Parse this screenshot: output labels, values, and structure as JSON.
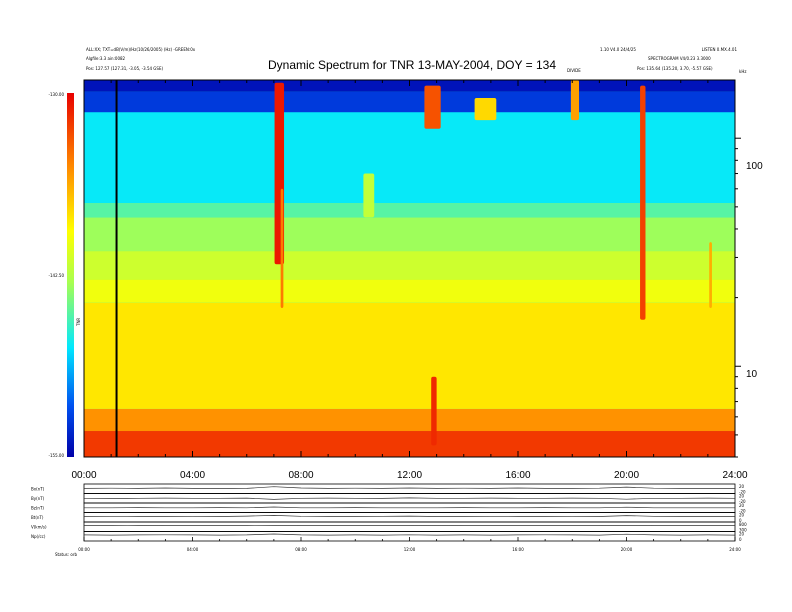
{
  "header": {
    "title": "Dynamic Spectrum for TNR 13-MAY-2004, DOY = 134",
    "left_line1": "ALL:XX; TXT=dB(V/m)/Hz(10/26/2005) (Hz) -GREEN:0x",
    "left_line2": "Algfile:3.3 ain:0082",
    "left_line3": "Pos:  127.57 (127.31, -3.05, -3.54 GSE)",
    "right_line1": "1.10 V4.0 24/4/25",
    "right_line2": "SPECTROGRAM  V4/0.23 3.3000",
    "right_line3": "Pos:  135.64 (135.20, 3.70, -5.57 GSE)",
    "far_right_top": "LISTEN 0.MX.4.01",
    "top_mark_label": "DIVIDE",
    "top_right_axis_label": "kHz"
  },
  "chart_data": [
    {
      "type": "heatmap",
      "title": "Dynamic Spectrum for TNR 13-MAY-2004, DOY = 134",
      "x_ticks": [
        "00:00",
        "04:00",
        "08:00",
        "12:00",
        "16:00",
        "20:00",
        "24:00"
      ],
      "x_range_hours": [
        0,
        24
      ],
      "y_right_ticks": [
        "100",
        "10"
      ],
      "y_right_scale": "log",
      "y_right_range_khz": [
        4,
        180
      ],
      "colorbar_ticks": [
        "-130.00",
        "-142.50",
        "-155.00"
      ],
      "colorbar_range": [
        -155,
        -130
      ],
      "colorbar_label": "TNR",
      "colormap": [
        "#0000a8",
        "#0050f0",
        "#00e8ff",
        "#a8ff50",
        "#ffff00",
        "#ff8800",
        "#e80000"
      ],
      "vertical_marker_hours": 1.2,
      "bands": [
        {
          "from_khz": 4,
          "to_khz": 5.2,
          "level": 0.93
        },
        {
          "from_khz": 5.2,
          "to_khz": 6.5,
          "level": 0.82
        },
        {
          "from_khz": 6.5,
          "to_khz": 19,
          "level": 0.7
        },
        {
          "from_khz": 19,
          "to_khz": 24,
          "level": 0.64
        },
        {
          "from_khz": 24,
          "to_khz": 32,
          "level": 0.57
        },
        {
          "from_khz": 32,
          "to_khz": 45,
          "level": 0.49
        },
        {
          "from_khz": 45,
          "to_khz": 52,
          "level": 0.42
        },
        {
          "from_khz": 52,
          "to_khz": 130,
          "level": 0.34
        },
        {
          "from_khz": 130,
          "to_khz": 160,
          "level": 0.12
        },
        {
          "from_khz": 160,
          "to_khz": 180,
          "level": 0.04
        }
      ],
      "bursts": [
        {
          "hour": 7.2,
          "width_hours": 0.35,
          "from_khz": 28,
          "to_khz": 175,
          "level": 0.97
        },
        {
          "hour": 7.3,
          "width_hours": 0.1,
          "from_khz": 18,
          "to_khz": 60,
          "level": 0.85
        },
        {
          "hour": 12.85,
          "width_hours": 0.6,
          "from_khz": 110,
          "to_khz": 170,
          "level": 0.9
        },
        {
          "hour": 12.9,
          "width_hours": 0.2,
          "from_khz": 4.5,
          "to_khz": 9,
          "level": 0.95
        },
        {
          "hour": 20.6,
          "width_hours": 0.2,
          "from_khz": 16,
          "to_khz": 170,
          "level": 0.92
        },
        {
          "hour": 18.1,
          "width_hours": 0.3,
          "from_khz": 120,
          "to_khz": 180,
          "level": 0.8
        },
        {
          "hour": 14.8,
          "width_hours": 0.8,
          "from_khz": 120,
          "to_khz": 150,
          "level": 0.72
        },
        {
          "hour": 23.1,
          "width_hours": 0.1,
          "from_khz": 18,
          "to_khz": 35,
          "level": 0.78
        },
        {
          "hour": 10.5,
          "width_hours": 0.4,
          "from_khz": 45,
          "to_khz": 70,
          "level": 0.55
        }
      ]
    },
    {
      "type": "line",
      "title": "",
      "x_ticks": [
        "00:00",
        "04:00",
        "08:00",
        "12:00",
        "16:00",
        "20:00",
        "24:00"
      ],
      "x_range_hours": [
        0,
        24
      ],
      "series": [
        {
          "name": "Bx(nT)",
          "scale_ticks": [
            "20",
            "-20"
          ],
          "values": [
            0.1,
            0.15,
            0.1,
            0.2,
            0.1,
            0.05,
            0.1,
            0.55,
            0.2,
            0.1,
            0.15,
            0.1,
            0.2,
            0.1,
            0.15,
            0.1,
            0.2,
            0.1,
            0.1,
            0.15,
            0.45,
            0.15,
            0.1,
            0.1,
            0.1
          ]
        },
        {
          "name": "By(nT)",
          "scale_ticks": [
            "20",
            "-20"
          ],
          "values": [
            0.0,
            -0.05,
            0.0,
            0.05,
            0.0,
            0.0,
            0.05,
            -0.3,
            0.0,
            0.05,
            0.0,
            -0.05,
            0.1,
            0.0,
            0.0,
            0.05,
            0.0,
            0.0,
            0.05,
            0.0,
            -0.25,
            0.0,
            0.0,
            0.05,
            0.0
          ]
        },
        {
          "name": "Bz(nT)",
          "scale_ticks": [
            "20",
            "-20"
          ],
          "values": [
            0.0,
            0.0,
            0.05,
            0.0,
            0.0,
            0.05,
            0.0,
            0.2,
            0.0,
            0.0,
            0.05,
            0.0,
            0.0,
            0.0,
            0.05,
            0.0,
            0.0,
            0.05,
            0.0,
            0.0,
            0.15,
            0.0,
            0.0,
            0.0,
            0.0
          ]
        },
        {
          "name": "Bt(nT)",
          "scale_ticks": [
            "20",
            "0"
          ],
          "values": [
            0.2,
            0.25,
            0.2,
            0.2,
            0.25,
            0.2,
            0.3,
            0.5,
            0.25,
            0.2,
            0.2,
            0.25,
            0.3,
            0.2,
            0.2,
            0.25,
            0.2,
            0.2,
            0.25,
            0.2,
            0.45,
            0.25,
            0.2,
            0.2,
            0.2
          ]
        },
        {
          "name": "V(km/s)",
          "scale_ticks": [
            "800",
            "300"
          ],
          "values": [
            0.3,
            0.3,
            0.32,
            0.3,
            0.31,
            0.3,
            0.3,
            0.33,
            0.3,
            0.3,
            0.31,
            0.3,
            0.3,
            0.32,
            0.3,
            0.3,
            0.31,
            0.3,
            0.3,
            0.3,
            0.32,
            0.3,
            0.3,
            0.31,
            0.3
          ]
        },
        {
          "name": "Np(/cc)",
          "scale_ticks": [
            "20",
            "0"
          ],
          "values": [
            0.35,
            0.3,
            0.35,
            0.4,
            0.35,
            0.3,
            0.35,
            0.6,
            0.35,
            0.3,
            0.35,
            0.3,
            0.4,
            0.3,
            0.35,
            0.3,
            0.35,
            0.4,
            0.35,
            0.3,
            0.55,
            0.35,
            0.3,
            0.35,
            0.3
          ]
        }
      ],
      "footer_label": "Status:  orb"
    }
  ]
}
